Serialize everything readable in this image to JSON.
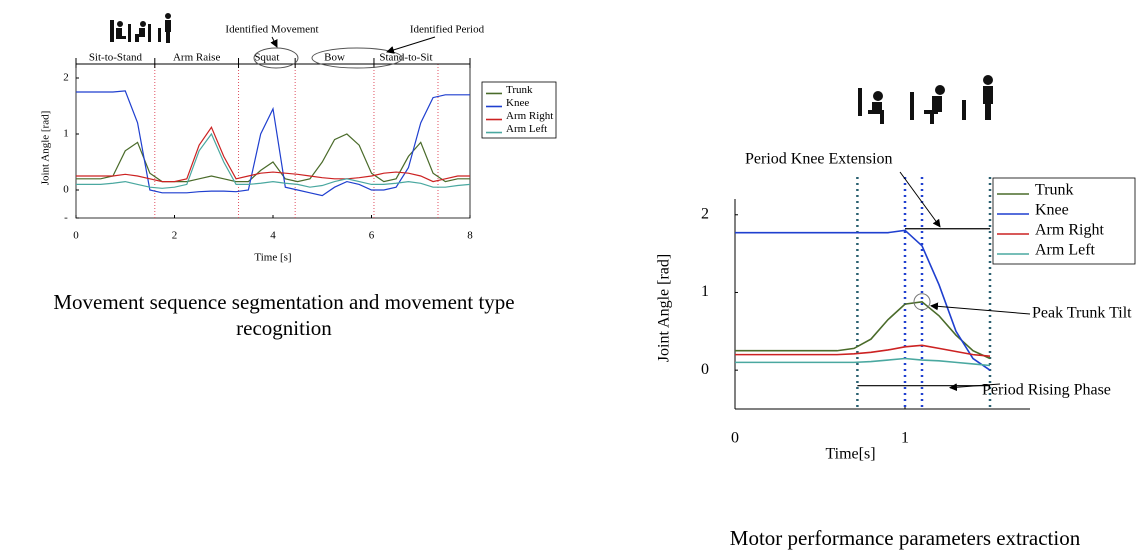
{
  "chart_data": [
    {
      "type": "line",
      "caption": [
        "Movement sequence segmentation and movement type",
        "recognition"
      ],
      "xlabel": "Time [s]",
      "ylabel": "Joint Angle [rad]",
      "xlim": [
        0,
        8
      ],
      "ylim": [
        -0.5,
        2
      ],
      "xticks": [
        0,
        2,
        4,
        6,
        8
      ],
      "yticks": [
        {
          "value": -0.5,
          "label": "-"
        },
        0,
        1,
        2
      ],
      "segments": [
        "Sit-to-Stand",
        "Arm Raise",
        "Squat",
        "Bow",
        "Stand-to-Sit"
      ],
      "segment_boundaries": [
        1.6,
        3.3,
        4.45,
        6.05,
        7.35
      ],
      "annotations": [
        "Identified Movement",
        "Identified Period"
      ],
      "x": [
        0,
        0.25,
        0.5,
        0.75,
        1,
        1.25,
        1.5,
        1.75,
        2,
        2.25,
        2.5,
        2.75,
        3,
        3.25,
        3.5,
        3.75,
        4,
        4.25,
        4.5,
        4.75,
        5,
        5.25,
        5.5,
        5.75,
        6,
        6.25,
        6.5,
        6.75,
        7,
        7.25,
        7.5,
        7.75,
        8
      ],
      "series": [
        {
          "name": "Trunk",
          "color": "#4a6b2a",
          "values": [
            0.2,
            0.2,
            0.2,
            0.25,
            0.7,
            0.85,
            0.3,
            0.15,
            0.15,
            0.15,
            0.2,
            0.25,
            0.2,
            0.15,
            0.15,
            0.35,
            0.5,
            0.2,
            0.15,
            0.2,
            0.5,
            0.9,
            1.0,
            0.8,
            0.3,
            0.15,
            0.2,
            0.6,
            0.85,
            0.3,
            0.15,
            0.2,
            0.2
          ]
        },
        {
          "name": "Knee",
          "color": "#1f3fcf",
          "values": [
            1.75,
            1.75,
            1.75,
            1.75,
            1.77,
            1.2,
            0.0,
            -0.05,
            -0.05,
            -0.05,
            -0.03,
            -0.02,
            -0.02,
            -0.03,
            0.0,
            1.0,
            1.45,
            0.05,
            0.0,
            -0.05,
            -0.1,
            0.05,
            0.15,
            0.1,
            0.0,
            0.0,
            0.05,
            0.4,
            1.2,
            1.65,
            1.7,
            1.7,
            1.7
          ]
        },
        {
          "name": "Arm Right",
          "color": "#cc2222",
          "values": [
            0.25,
            0.25,
            0.25,
            0.25,
            0.28,
            0.25,
            0.2,
            0.15,
            0.15,
            0.2,
            0.8,
            1.12,
            0.6,
            0.2,
            0.25,
            0.3,
            0.32,
            0.3,
            0.28,
            0.25,
            0.22,
            0.2,
            0.2,
            0.22,
            0.25,
            0.3,
            0.32,
            0.3,
            0.25,
            0.15,
            0.2,
            0.25,
            0.25
          ]
        },
        {
          "name": "Arm Left",
          "color": "#4aa8a0",
          "values": [
            0.1,
            0.1,
            0.1,
            0.12,
            0.15,
            0.1,
            0.05,
            0.03,
            0.05,
            0.1,
            0.7,
            1.0,
            0.5,
            0.1,
            0.1,
            0.12,
            0.15,
            0.12,
            0.1,
            0.05,
            0.08,
            0.15,
            0.2,
            0.15,
            0.1,
            0.1,
            0.12,
            0.15,
            0.12,
            0.05,
            0.05,
            0.08,
            0.1
          ]
        }
      ]
    },
    {
      "type": "line",
      "caption": [
        "Motor performance parameters extraction"
      ],
      "xlabel": "Time[s]",
      "ylabel": "Joint Angle [rad]",
      "xlim": [
        0,
        1.5
      ],
      "ylim": [
        -0.5,
        2.1
      ],
      "xticks": [
        0,
        1
      ],
      "yticks": [
        0,
        1,
        2
      ],
      "vlines": [
        0.72,
        1.0,
        1.1,
        1.5
      ],
      "periods": [
        {
          "label": "Period Knee Extension",
          "x": [
            1.0,
            1.5
          ],
          "y": 1.82
        },
        {
          "label": "Period Rising Phase",
          "x": [
            0.72,
            1.5
          ],
          "y": -0.2
        }
      ],
      "peak": {
        "label": "Peak Trunk Tilt",
        "x": 1.1,
        "y": 0.88
      },
      "x": [
        0,
        0.1,
        0.2,
        0.3,
        0.4,
        0.5,
        0.6,
        0.7,
        0.8,
        0.9,
        1.0,
        1.1,
        1.2,
        1.3,
        1.4,
        1.5
      ],
      "series": [
        {
          "name": "Trunk",
          "color": "#4a6b2a",
          "values": [
            0.25,
            0.25,
            0.25,
            0.25,
            0.25,
            0.25,
            0.25,
            0.28,
            0.4,
            0.65,
            0.85,
            0.88,
            0.7,
            0.45,
            0.25,
            0.15
          ]
        },
        {
          "name": "Knee",
          "color": "#1f3fcf",
          "values": [
            1.77,
            1.77,
            1.77,
            1.77,
            1.77,
            1.77,
            1.77,
            1.77,
            1.77,
            1.77,
            1.8,
            1.6,
            1.1,
            0.5,
            0.15,
            0.0
          ]
        },
        {
          "name": "Arm Right",
          "color": "#cc2222",
          "values": [
            0.2,
            0.2,
            0.2,
            0.2,
            0.2,
            0.2,
            0.2,
            0.21,
            0.23,
            0.26,
            0.3,
            0.32,
            0.28,
            0.24,
            0.2,
            0.18
          ]
        },
        {
          "name": "Arm Left",
          "color": "#4aa8a0",
          "values": [
            0.1,
            0.1,
            0.1,
            0.1,
            0.1,
            0.1,
            0.1,
            0.1,
            0.11,
            0.13,
            0.15,
            0.13,
            0.12,
            0.1,
            0.08,
            0.06
          ]
        }
      ]
    }
  ]
}
